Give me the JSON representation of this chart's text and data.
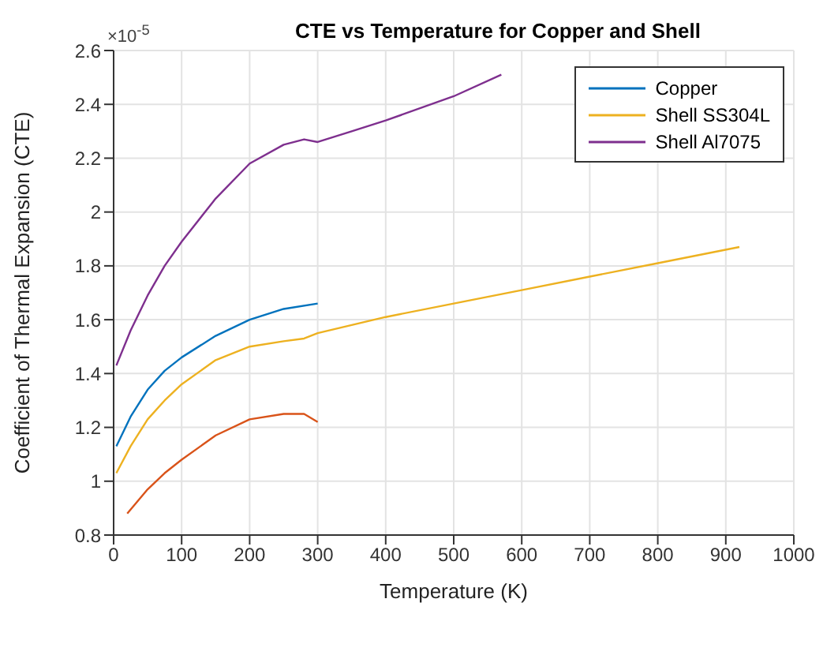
{
  "chart_data": {
    "type": "line",
    "title": "CTE vs Temperature for Copper and Shell",
    "xlabel": "Temperature (K)",
    "ylabel": "Coefficient of Thermal Expansion (CTE)",
    "annotations": [
      "×10$^{-5}$"
    ],
    "xlim": [
      0,
      1000
    ],
    "xticks": [
      0,
      100,
      200,
      300,
      400,
      500,
      600,
      700,
      800,
      900,
      1000
    ],
    "ylim": [
      0.8,
      2.6
    ],
    "yticks": [
      0.8,
      1,
      1.2,
      1.4,
      1.6,
      1.8,
      2,
      2.2,
      2.4,
      2.6
    ],
    "grid": true,
    "legend": "top right",
    "marker": "none",
    "line_style": "solid",
    "series": [
      {
        "name": "Copper",
        "color": "#0072bd",
        "x": [
          4,
          25,
          50,
          75,
          100,
          150,
          200,
          250,
          300
        ],
        "values": [
          1.13,
          1.24,
          1.34,
          1.41,
          1.46,
          1.54,
          1.6,
          1.64,
          1.66
        ]
      },
      {
        "color": "#d95319",
        "x": [
          20,
          50,
          75,
          100,
          150,
          200,
          250,
          280,
          300
        ],
        "values": [
          0.88,
          0.97,
          1.03,
          1.08,
          1.17,
          1.23,
          1.25,
          1.25,
          1.22
        ]
      },
      {
        "name": "Shell SS304L",
        "color": "#edb120",
        "x": [
          4,
          25,
          50,
          75,
          100,
          150,
          200,
          250,
          280,
          300,
          350,
          400,
          500,
          600,
          700,
          800,
          920
        ],
        "values": [
          1.03,
          1.13,
          1.23,
          1.3,
          1.36,
          1.45,
          1.5,
          1.52,
          1.53,
          1.55,
          1.58,
          1.61,
          1.66,
          1.71,
          1.76,
          1.81,
          1.87
        ]
      },
      {
        "name": "Shell Al7075",
        "color": "#7e2f8e",
        "x": [
          4,
          25,
          50,
          75,
          100,
          150,
          200,
          250,
          280,
          300,
          350,
          400,
          500,
          570
        ],
        "values": [
          1.43,
          1.56,
          1.69,
          1.8,
          1.89,
          2.05,
          2.18,
          2.25,
          2.27,
          2.26,
          2.3,
          2.34,
          2.43,
          2.51
        ]
      }
    ]
  }
}
